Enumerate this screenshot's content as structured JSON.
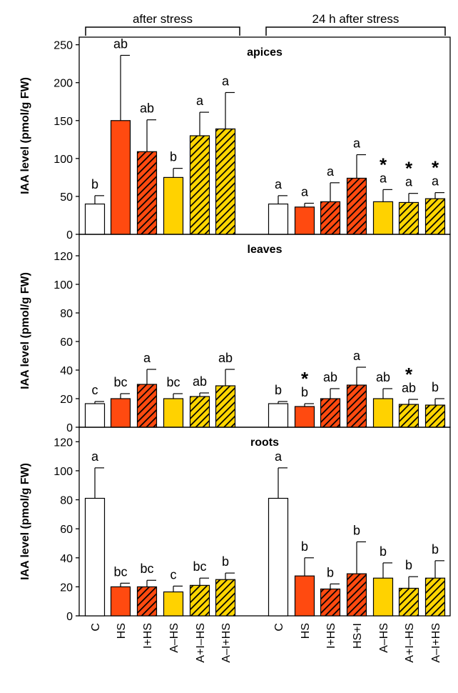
{
  "colors": {
    "control": "#ffffff",
    "hs": "#ff4a10",
    "hs_hatch_fill": "#ff4a10",
    "a_hs": "#ffd200",
    "a_hatch_fill": "#ffd600",
    "outline": "#000000"
  },
  "chart_data": {
    "type": "bar",
    "group_labels": [
      "after stress",
      "24 h after stress"
    ],
    "categories": {
      "after_stress": [
        "C",
        "HS",
        "I+HS",
        "A–HS",
        "A+I–HS",
        "A–I+HS"
      ],
      "after_24h": [
        "C",
        "HS",
        "I+HS",
        "HS+I",
        "A–HS",
        "A+I–HS",
        "A–I+HS"
      ]
    },
    "bar_styles": {
      "after_stress": [
        "white",
        "red",
        "red-hatch",
        "yellow",
        "yellow-hatch",
        "yellow-hatch"
      ],
      "after_24h": [
        "white",
        "red",
        "red-hatch",
        "red-hatch",
        "yellow",
        "yellow-hatch",
        "yellow-hatch"
      ]
    },
    "panels": [
      {
        "title": "apices",
        "ylabel": "IAA level (pmol/g FW)",
        "ylim": [
          0,
          260
        ],
        "yticks": [
          0,
          50,
          100,
          150,
          200,
          250
        ],
        "after_stress": {
          "values": [
            40,
            150,
            109,
            75,
            130,
            139
          ],
          "errors": [
            11,
            86,
            42,
            12,
            31,
            48
          ],
          "letters": [
            "b",
            "ab",
            "ab",
            "b",
            "a",
            "a"
          ],
          "stars": [
            "",
            "",
            "",
            "",
            "",
            ""
          ]
        },
        "after_24h": {
          "values": [
            40,
            36,
            43,
            74,
            43,
            42,
            47
          ],
          "errors": [
            11,
            5,
            25,
            31,
            16,
            12,
            8
          ],
          "letters": [
            "a",
            "a",
            "a",
            "a",
            "a",
            "a",
            "a"
          ],
          "stars": [
            "",
            "",
            "",
            "",
            "*",
            "*",
            "*"
          ]
        }
      },
      {
        "title": "leaves",
        "ylabel": "IAA level (pmol/g FW)",
        "ylim": [
          0,
          135
        ],
        "yticks": [
          0,
          20,
          40,
          60,
          80,
          100,
          120
        ],
        "after_stress": {
          "values": [
            16.5,
            20,
            30,
            20,
            21.5,
            29
          ],
          "errors": [
            1.5,
            3.5,
            10.5,
            3.5,
            2.5,
            11.5
          ],
          "letters": [
            "c",
            "bc",
            "a",
            "bc",
            "ab",
            "ab"
          ],
          "stars": [
            "",
            "",
            "",
            "",
            "",
            ""
          ]
        },
        "after_24h": {
          "values": [
            16.5,
            14.5,
            20,
            29.5,
            20,
            16,
            15.5
          ],
          "errors": [
            1.5,
            2,
            7,
            12.5,
            7,
            3.5,
            4.5
          ],
          "letters": [
            "b",
            "b",
            "ab",
            "a",
            "ab",
            "ab",
            "b"
          ],
          "stars": [
            "",
            "*",
            "",
            "",
            "",
            "*",
            ""
          ]
        }
      },
      {
        "title": "roots",
        "ylabel": "IAA level (pmol/g FW)",
        "ylim": [
          0,
          130
        ],
        "yticks": [
          0,
          20,
          40,
          60,
          80,
          100,
          120
        ],
        "after_stress": {
          "values": [
            81,
            20,
            20,
            16.5,
            21,
            25
          ],
          "errors": [
            21,
            2.5,
            4.5,
            4,
            5,
            4.5
          ],
          "letters": [
            "a",
            "bc",
            "bc",
            "c",
            "bc",
            "b"
          ],
          "stars": [
            "",
            "",
            "",
            "",
            "",
            ""
          ]
        },
        "after_24h": {
          "values": [
            81,
            27.5,
            18.5,
            29,
            26,
            19,
            26
          ],
          "errors": [
            21,
            12.5,
            3.5,
            22,
            10.5,
            8,
            12
          ],
          "letters": [
            "a",
            "b",
            "b",
            "b",
            "b",
            "b",
            "b"
          ],
          "stars": [
            "",
            "",
            "",
            "",
            "",
            "",
            ""
          ]
        }
      }
    ]
  }
}
